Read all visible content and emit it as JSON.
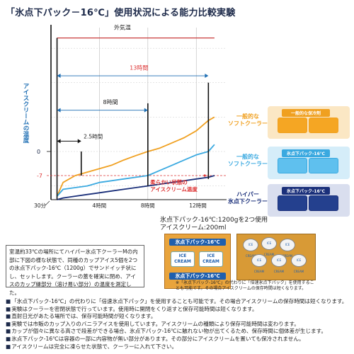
{
  "title": "「氷点下パック－16℃」使用状況による能力比較実験",
  "chart_data": {
    "type": "line",
    "title": "「氷点下パック－16℃」使用状況による能力比較実験",
    "ylabel": "アイスクリームの温度",
    "y_tick_labels": [
      "0",
      "-7"
    ],
    "x_tick_labels": [
      "30分",
      "4時間",
      "8時間",
      "12時間"
    ],
    "x": [
      0.5,
      1,
      2,
      3,
      4,
      5,
      6,
      7,
      8,
      9,
      10,
      11,
      12,
      13,
      13.5
    ],
    "xlim": [
      0,
      14.5
    ],
    "ylim": [
      -14,
      36
    ],
    "series": [
      {
        "name": "外気温",
        "color": "#c83a3a",
        "values": [
          33,
          33,
          33,
          33,
          33,
          33,
          33,
          33,
          33,
          33,
          33,
          33,
          33,
          33,
          33
        ]
      },
      {
        "name": "一般的なソフトクーラー",
        "color": "#f0a020",
        "values": [
          -13,
          -9,
          -7,
          -6,
          -5,
          -4,
          -2.5,
          -1.2,
          0,
          1,
          2.5,
          4,
          6,
          9,
          10
        ]
      },
      {
        "name": "一般的なソフトクーラー",
        "color": "#3aa9e0",
        "values": [
          -13,
          -11,
          -10.5,
          -10,
          -9,
          -8.5,
          -8,
          -7.5,
          -7,
          -5.5,
          -4,
          -2.5,
          -1,
          0,
          2
        ]
      },
      {
        "name": "ハイパー氷点下クーラー",
        "color": "#1a2f7a",
        "values": [
          -14,
          -13.5,
          -13,
          -12.5,
          -12,
          -11.5,
          -11,
          -10.5,
          -10,
          -9.5,
          -9,
          -8.5,
          -8,
          -7.5,
          -7
        ]
      }
    ],
    "annotations": [
      {
        "text": "外気温"
      },
      {
        "text": "13時間",
        "color": "#d33"
      },
      {
        "text": "8時間"
      },
      {
        "text": "2.5時間"
      },
      {
        "text": "柔らかい状態の アイスクリーム温度",
        "color": "#d33"
      }
    ]
  },
  "legend": [
    {
      "label": "一般的な\nソフトクーラー",
      "color": "#f0a020",
      "bg": "#fbe7c4",
      "cap": "一般的な保冷剤"
    },
    {
      "label": "一般的な\nソフトクーラー",
      "color": "#3aa9e0",
      "bg": "#d5edf9",
      "cap": "氷点下パック-16℃"
    },
    {
      "label": "ハイパー\n氷点下クーラー",
      "color": "#1a2f7a",
      "bg": "#d9deee",
      "cap": "氷点下パック-16℃"
    }
  ],
  "mid_caption": {
    "line1": "氷点下パック-16℃:1200gを2つ使用",
    "line2": "アイスクリーム:200ml"
  },
  "note": "室温約33℃の場所にてハイパー氷点下クーラーMの内部に下図の様な状態で、同種のカップアイス5個を2つの氷点下パック-16℃（1200g）でサンドイッチ状にし、セットします。クーラーの蓋を確実に閉め、アイスのカップ縁部分（溶け易い部分）の温度を測定した。",
  "pack_labels": [
    "氷点下パック-16℃",
    "氷点下パック-16℃"
  ],
  "ice_cup_text": "ICE\nCREAM",
  "photo_cup_text": "ICE CREAM",
  "photo_caption": "※「氷点下パック-16℃」の代わりに「倍速氷点下パック」を使用することも可能です。その場合アイスクリームの保存時間は短くなります。",
  "bullets": [
    "「氷点下パック-16℃」の代わりに「倍速氷点下パック」を使用することも可能です。その場合アイスクリームの保存時間は短くなります。",
    "実験はクーラーを密閉状態で行っています。使用時に開閉をくり返すと保存可能時間は短くなります。",
    "直射日光があたる場所では、保存可能時間が短くなります。",
    "実験では市販のカップ入りのバニラアイスを使用しています。アイスクリームの種類により保存可能時間は変わります。",
    "カップが個々に異なる高さで段差ができる場合、氷点下パック-16℃に触れない物が出てくるため、保存時間に個体差が生じます。",
    "氷点下パック-16℃は容器の一部に内容物が無い部分があります。その部分にアイスクリームを置いても保冷されません。",
    "アイスクリームは完全に凍らせた状態で、クーラーに入れて下さい。"
  ]
}
